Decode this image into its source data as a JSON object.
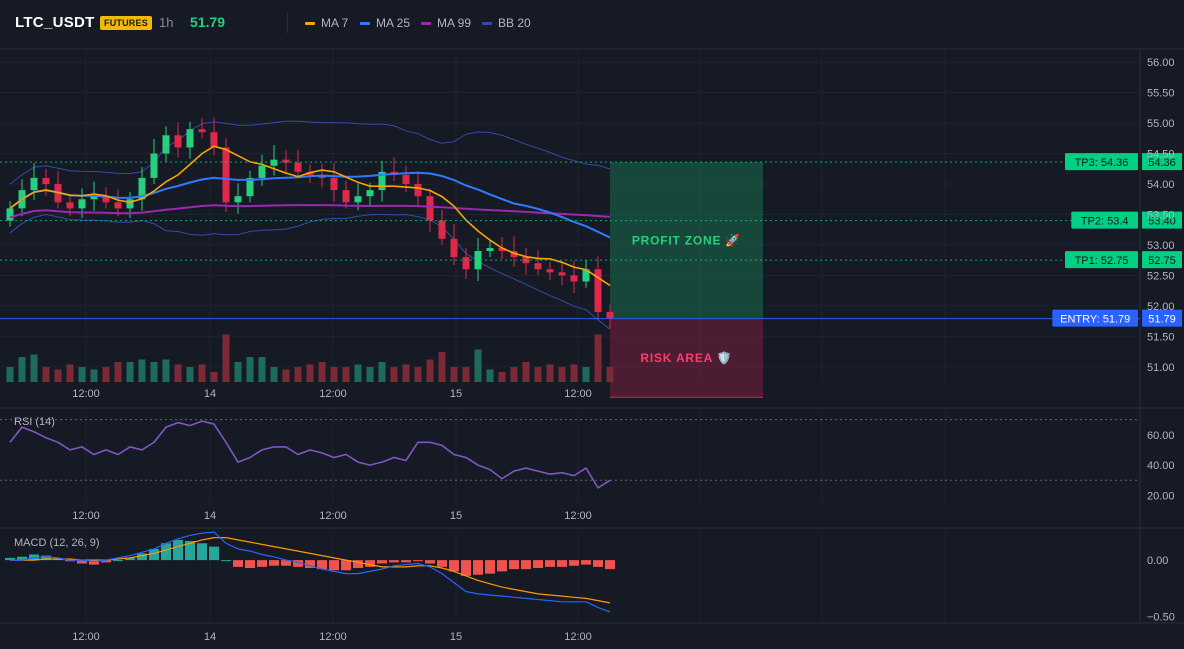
{
  "header": {
    "symbol": "LTC_USDT",
    "badge": "FUTURES",
    "timeframe": "1h",
    "last_price": "51.79"
  },
  "legend": [
    {
      "label": "MA 7",
      "color": "#f7a600"
    },
    {
      "label": "MA 25",
      "color": "#2f7bff"
    },
    {
      "label": "MA 99",
      "color": "#9c27b0"
    },
    {
      "label": "BB 20",
      "color": "#3949ab"
    }
  ],
  "colors": {
    "up": "#26d07c",
    "down": "#e0294a",
    "vol_up": "#1f6b5b",
    "vol_down": "#7d2a37",
    "macd_pos": "#26a69a",
    "macd_neg": "#ef5350",
    "rsi": "#7e57c2",
    "bb": "#3949ab",
    "ma7": "#f7a600",
    "ma25": "#2f7bff",
    "ma99": "#9c27b0"
  },
  "price_axis": {
    "ticks": [
      "56.00",
      "55.50",
      "55.00",
      "54.50",
      "54.00",
      "53.50",
      "53.00",
      "52.50",
      "52.00",
      "51.50",
      "51.00"
    ],
    "ylim": [
      50.75,
      56.2
    ]
  },
  "rsi_axis": {
    "label": "RSI (14)",
    "ticks": [
      "60.00",
      "40.00",
      "20.00"
    ],
    "levels": [
      70,
      30
    ]
  },
  "macd_axis": {
    "label": "MACD (12, 26, 9)",
    "ticks": [
      "0.00",
      "−0.50"
    ]
  },
  "time_labels": [
    "12:00",
    "14",
    "12:00",
    "15",
    "12:00"
  ],
  "levels": [
    {
      "label": "TP3: 54.36",
      "value": 54.36,
      "axis_label": "54.36",
      "color": "#00d084",
      "style": "dotted"
    },
    {
      "label": "TP2: 53.4",
      "value": 53.4,
      "axis_label": "53.40",
      "color": "#00d084",
      "style": "dotted"
    },
    {
      "label": "TP1: 52.75",
      "value": 52.75,
      "axis_label": "52.75",
      "color": "#00d084",
      "style": "dotted"
    },
    {
      "label": "ENTRY: 51.79",
      "value": 51.79,
      "axis_label": "51.79",
      "color": "#2962ff",
      "style": "solid"
    }
  ],
  "zones": {
    "profit_label": "PROFIT ZONE 🚀",
    "risk_label": "RISK AREA 🛡️",
    "top": 54.36,
    "entry": 51.79,
    "bottom": 50.5
  },
  "chart_data": [
    {
      "type": "candlestick",
      "title": "LTC_USDT",
      "series_close": [
        53.6,
        53.9,
        54.1,
        54.0,
        53.7,
        53.6,
        53.75,
        53.8,
        53.7,
        53.6,
        53.75,
        54.1,
        54.5,
        54.8,
        54.6,
        54.9,
        54.85,
        54.6,
        53.7,
        53.8,
        54.1,
        54.3,
        54.4,
        54.35,
        54.2,
        54.15,
        54.1,
        53.9,
        53.7,
        53.8,
        53.9,
        54.2,
        54.15,
        54.0,
        53.8,
        53.4,
        53.1,
        52.8,
        52.6,
        52.9,
        52.95,
        52.9,
        52.8,
        52.7,
        52.6,
        52.55,
        52.5,
        52.4,
        52.6,
        51.9,
        51.79
      ],
      "volume": [
        0.3,
        0.5,
        0.55,
        0.3,
        0.25,
        0.35,
        0.3,
        0.25,
        0.3,
        0.4,
        0.4,
        0.45,
        0.4,
        0.45,
        0.35,
        0.3,
        0.35,
        0.2,
        0.95,
        0.4,
        0.5,
        0.5,
        0.3,
        0.25,
        0.3,
        0.35,
        0.4,
        0.3,
        0.3,
        0.35,
        0.3,
        0.4,
        0.3,
        0.35,
        0.3,
        0.45,
        0.6,
        0.3,
        0.3,
        0.65,
        0.25,
        0.2,
        0.3,
        0.4,
        0.3,
        0.35,
        0.3,
        0.35,
        0.3,
        0.95,
        0.3
      ]
    },
    {
      "type": "line",
      "title": "RSI (14)",
      "ylim": [
        15,
        75
      ],
      "values": [
        55,
        65,
        62,
        58,
        55,
        50,
        52,
        47,
        50,
        47,
        52,
        50,
        55,
        65,
        68,
        66,
        69,
        67,
        55,
        42,
        45,
        50,
        52,
        52,
        47,
        50,
        48,
        45,
        47,
        42,
        40,
        42,
        45,
        43,
        55,
        55,
        53,
        47,
        45,
        40,
        37,
        31,
        36,
        38,
        36,
        34,
        35,
        33,
        38,
        25,
        30
      ]
    },
    {
      "type": "bar+line",
      "title": "MACD (12, 26, 9)",
      "ylim": [
        -0.55,
        0.25
      ],
      "histogram": [
        0.02,
        0.03,
        0.05,
        0.04,
        0.01,
        -0.01,
        -0.03,
        -0.04,
        -0.02,
        0.0,
        0.02,
        0.06,
        0.1,
        0.15,
        0.18,
        0.17,
        0.15,
        0.12,
        0.0,
        -0.06,
        -0.07,
        -0.06,
        -0.05,
        -0.05,
        -0.06,
        -0.07,
        -0.08,
        -0.09,
        -0.09,
        -0.07,
        -0.06,
        -0.03,
        -0.02,
        -0.02,
        -0.01,
        -0.03,
        -0.06,
        -0.1,
        -0.14,
        -0.13,
        -0.12,
        -0.1,
        -0.08,
        -0.08,
        -0.07,
        -0.06,
        -0.06,
        -0.05,
        -0.04,
        -0.06,
        -0.08
      ],
      "macd": [
        0.0,
        0.0,
        0.02,
        0.03,
        0.02,
        0.0,
        0.0,
        -0.01,
        0.0,
        0.02,
        0.04,
        0.07,
        0.1,
        0.15,
        0.19,
        0.22,
        0.24,
        0.25,
        0.15,
        0.1,
        0.08,
        0.05,
        0.03,
        0.0,
        -0.02,
        -0.05,
        -0.08,
        -0.1,
        -0.12,
        -0.12,
        -0.1,
        -0.08,
        -0.05,
        -0.04,
        -0.03,
        -0.06,
        -0.12,
        -0.2,
        -0.28,
        -0.3,
        -0.31,
        -0.32,
        -0.33,
        -0.34,
        -0.35,
        -0.36,
        -0.37,
        -0.37,
        -0.37,
        -0.42,
        -0.46
      ],
      "signal": [
        0.0,
        0.0,
        0.0,
        0.01,
        0.01,
        0.01,
        0.0,
        0.0,
        0.0,
        0.01,
        0.02,
        0.04,
        0.06,
        0.09,
        0.12,
        0.15,
        0.18,
        0.2,
        0.2,
        0.18,
        0.16,
        0.14,
        0.12,
        0.1,
        0.08,
        0.06,
        0.04,
        0.02,
        0.0,
        -0.02,
        -0.04,
        -0.06,
        -0.06,
        -0.06,
        -0.05,
        -0.05,
        -0.07,
        -0.1,
        -0.14,
        -0.18,
        -0.21,
        -0.24,
        -0.26,
        -0.28,
        -0.3,
        -0.31,
        -0.32,
        -0.33,
        -0.34,
        -0.36,
        -0.38
      ]
    }
  ]
}
